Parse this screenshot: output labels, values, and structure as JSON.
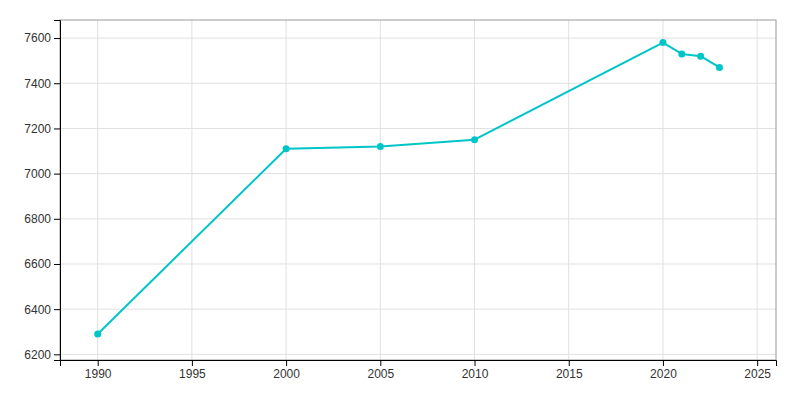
{
  "chart_data": {
    "type": "line",
    "x": [
      1990,
      2000,
      2005,
      2010,
      2020,
      2021,
      2022,
      2023
    ],
    "values": [
      6290,
      7110,
      7120,
      7150,
      7580,
      7530,
      7520,
      7470
    ],
    "color": "#00C5C8",
    "marker": "circle",
    "xlim": [
      1988,
      2026
    ],
    "ylim": [
      6175,
      7680
    ],
    "xticks": [
      1990,
      1995,
      2000,
      2005,
      2010,
      2015,
      2020,
      2025
    ],
    "yticks": [
      6200,
      6400,
      6600,
      6800,
      7000,
      7200,
      7400,
      7600
    ],
    "grid": true
  }
}
